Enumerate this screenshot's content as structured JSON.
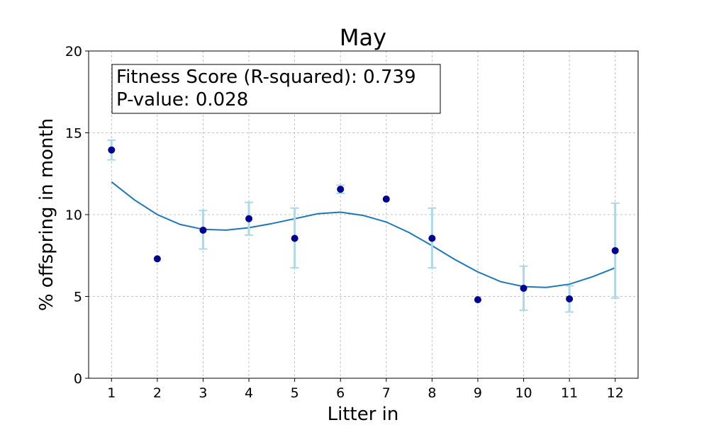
{
  "chart_data": {
    "type": "scatter",
    "title": "May",
    "xlabel": "Litter in",
    "ylabel": "% offspring in month",
    "xlim": [
      0.5,
      12.5
    ],
    "ylim": [
      0,
      20
    ],
    "x_ticks": [
      1,
      2,
      3,
      4,
      5,
      6,
      7,
      8,
      9,
      10,
      11,
      12
    ],
    "y_ticks": [
      0,
      5,
      10,
      15,
      20
    ],
    "grid": true,
    "annotation": {
      "line1": "Fitness Score (R-squared): 0.739",
      "line2": "P-value: 0.028",
      "placement": "top-left"
    },
    "points": {
      "x": [
        1,
        2,
        3,
        4,
        5,
        6,
        7,
        8,
        9,
        10,
        11,
        12
      ],
      "y": [
        13.95,
        7.3,
        9.05,
        9.75,
        8.55,
        11.55,
        10.95,
        8.55,
        4.8,
        5.5,
        4.85,
        7.8
      ],
      "err_low": [
        13.35,
        7.3,
        7.9,
        8.75,
        6.75,
        11.3,
        10.95,
        6.75,
        4.8,
        4.15,
        4.05,
        4.9
      ],
      "err_high": [
        14.55,
        7.3,
        10.25,
        10.75,
        10.4,
        11.8,
        10.95,
        10.4,
        4.8,
        6.85,
        5.65,
        10.7
      ],
      "marker_color": "#00008b",
      "error_color": "#add8e6"
    },
    "fit_curve": {
      "x": [
        1,
        1.5,
        2,
        2.5,
        3,
        3.5,
        4,
        4.5,
        5,
        5.5,
        6,
        6.5,
        7,
        7.5,
        8,
        8.5,
        9,
        9.5,
        10,
        10.5,
        11,
        11.5,
        12
      ],
      "y": [
        12.0,
        10.9,
        10.0,
        9.4,
        9.1,
        9.05,
        9.2,
        9.45,
        9.75,
        10.05,
        10.15,
        9.95,
        9.55,
        8.9,
        8.1,
        7.25,
        6.5,
        5.9,
        5.6,
        5.55,
        5.75,
        6.2,
        6.75
      ],
      "color": "#1f77b4"
    }
  }
}
